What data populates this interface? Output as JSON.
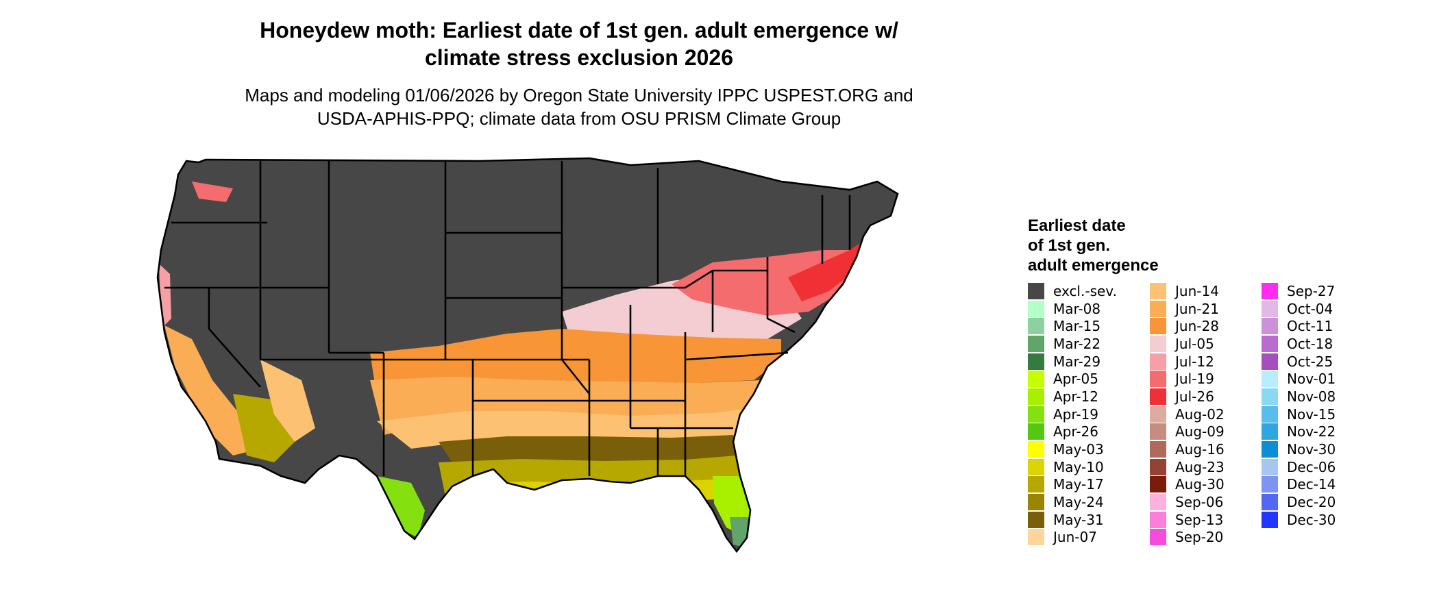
{
  "title_line1": "Honeydew moth: Earliest date of 1st gen. adult emergence w/",
  "title_line2": "climate stress exclusion 2026",
  "subtitle_line1": "Maps and modeling 01/06/2026 by Oregon State University IPPC USPEST.ORG and",
  "subtitle_line2": "USDA-APHIS-PPQ; climate data from OSU PRISM Climate Group",
  "legend": {
    "title_lines": [
      "Earliest date",
      "of 1st gen.",
      "adult emergence"
    ],
    "columns": [
      [
        {
          "label": "excl.-sev.",
          "color": "#474747"
        },
        {
          "label": "Mar-08",
          "color": "#b3ffc8"
        },
        {
          "label": "Mar-15",
          "color": "#8fd19e"
        },
        {
          "label": "Mar-22",
          "color": "#62a56b"
        },
        {
          "label": "Mar-29",
          "color": "#357a3e"
        },
        {
          "label": "Apr-05",
          "color": "#c4ff00"
        },
        {
          "label": "Apr-12",
          "color": "#a9f000"
        },
        {
          "label": "Apr-19",
          "color": "#84e00e"
        },
        {
          "label": "Apr-26",
          "color": "#52c90e"
        },
        {
          "label": "May-03",
          "color": "#ffff00"
        },
        {
          "label": "May-10",
          "color": "#dcd300"
        },
        {
          "label": "May-17",
          "color": "#b6a800"
        },
        {
          "label": "May-24",
          "color": "#9a8500"
        },
        {
          "label": "May-31",
          "color": "#7a5f0a"
        },
        {
          "label": "Jun-07",
          "color": "#ffd59a"
        }
      ],
      [
        {
          "label": "Jun-14",
          "color": "#fcc173"
        },
        {
          "label": "Jun-21",
          "color": "#fbad55"
        },
        {
          "label": "Jun-28",
          "color": "#f89537"
        },
        {
          "label": "Jul-05",
          "color": "#f4cdd2"
        },
        {
          "label": "Jul-12",
          "color": "#f6a0a6"
        },
        {
          "label": "Jul-19",
          "color": "#f56c6f"
        },
        {
          "label": "Jul-26",
          "color": "#f03035"
        },
        {
          "label": "Aug-02",
          "color": "#dcaca1"
        },
        {
          "label": "Aug-09",
          "color": "#c88c7e"
        },
        {
          "label": "Aug-16",
          "color": "#b06a5a"
        },
        {
          "label": "Aug-23",
          "color": "#944233"
        },
        {
          "label": "Aug-30",
          "color": "#7a1c0a"
        },
        {
          "label": "Sep-06",
          "color": "#fcb2dc"
        },
        {
          "label": "Sep-13",
          "color": "#fb7fd9"
        },
        {
          "label": "Sep-20",
          "color": "#f54cdb"
        }
      ],
      [
        {
          "label": "Sep-27",
          "color": "#ff2bf0"
        },
        {
          "label": "Oct-04",
          "color": "#e2b9e4"
        },
        {
          "label": "Oct-11",
          "color": "#cc91d8"
        },
        {
          "label": "Oct-18",
          "color": "#b96ccd"
        },
        {
          "label": "Oct-25",
          "color": "#a54fbd"
        },
        {
          "label": "Nov-01",
          "color": "#b8ecff"
        },
        {
          "label": "Nov-08",
          "color": "#8bd8f3"
        },
        {
          "label": "Nov-15",
          "color": "#58bdeb"
        },
        {
          "label": "Nov-22",
          "color": "#2ea6e0"
        },
        {
          "label": "Nov-30",
          "color": "#0b8ed6"
        },
        {
          "label": "Dec-06",
          "color": "#a6c6ee"
        },
        {
          "label": "Dec-14",
          "color": "#7b95f0"
        },
        {
          "label": "Dec-20",
          "color": "#5068f3"
        },
        {
          "label": "Dec-30",
          "color": "#2236ff"
        }
      ]
    ]
  }
}
